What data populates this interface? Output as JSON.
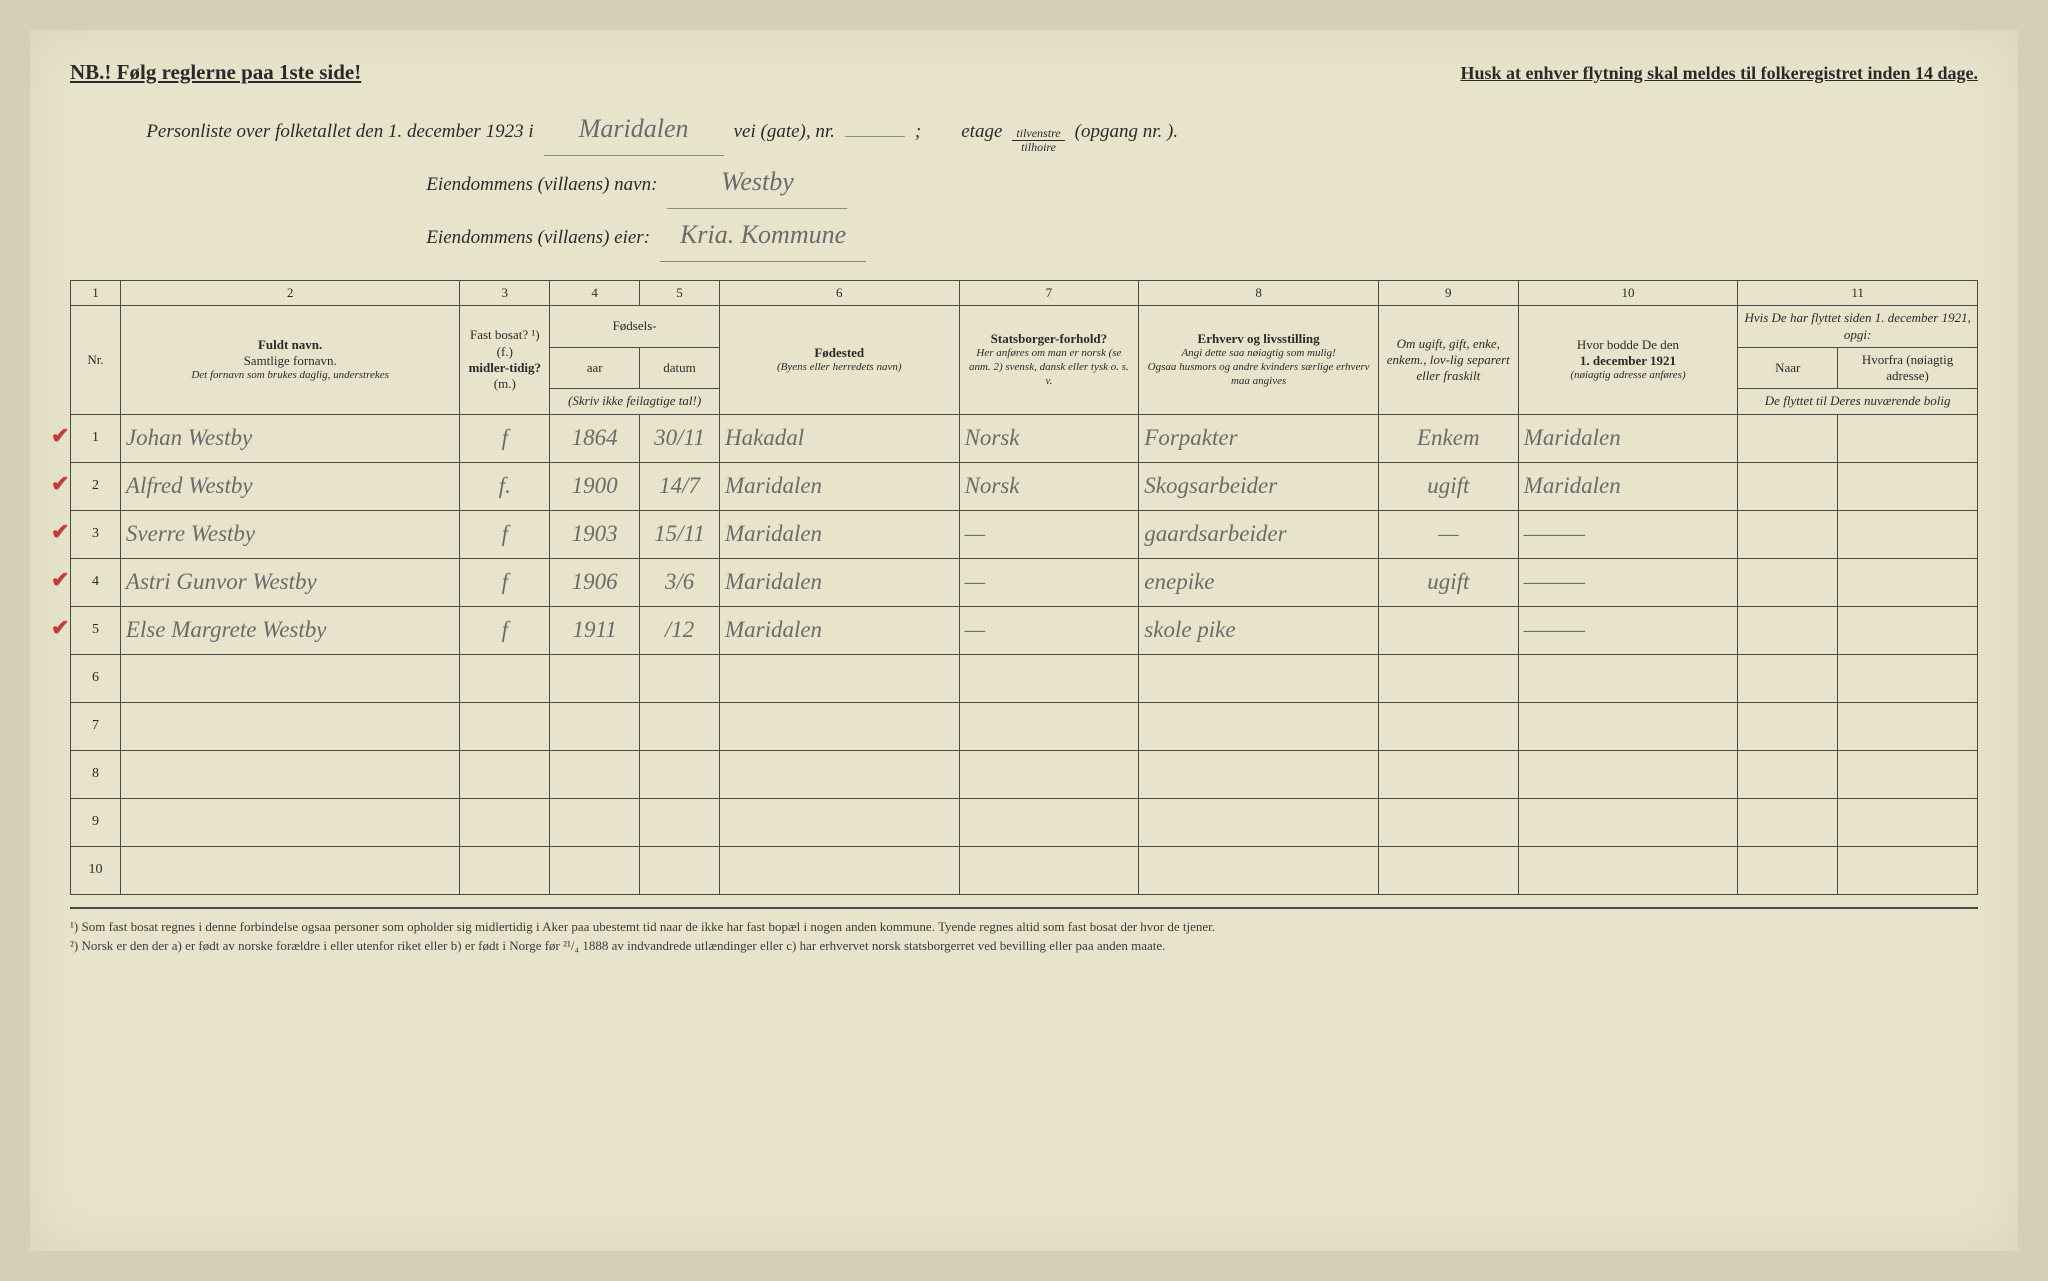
{
  "top": {
    "nb": "NB.! Følg reglerne paa 1ste side!",
    "husk": "Husk at enhver flytning skal meldes til folkeregistret inden 14 dage."
  },
  "header": {
    "line1_a": "Personliste over folketallet den 1. december 1923 i",
    "street": "Maridalen",
    "line1_b": "vei (gate), nr.",
    "line1_c": ";",
    "line1_d": "etage",
    "frac_top": "tilvenstre",
    "frac_bot": "tilhoire",
    "line1_e": "(opgang nr.      ).",
    "line2_a": "Eiendommens (villaens) navn:",
    "villa_name": "Westby",
    "line3_a": "Eiendommens (villaens) eier:",
    "villa_owner": "Kria. Kommune"
  },
  "colnums": [
    "1",
    "2",
    "3",
    "4",
    "5",
    "6",
    "7",
    "8",
    "9",
    "10",
    "11"
  ],
  "headers": {
    "nr": "Nr.",
    "name_main": "Fuldt navn.",
    "name_sub1": "Samtlige fornavn.",
    "name_sub2": "Det fornavn som brukes daglig, understrekes",
    "fast_main": "Fast bosat? ¹)",
    "fast_sub1": "(f.)",
    "fast_sub2": "midler-tidig?",
    "fast_sub3": "(m.)",
    "fodsel": "Fødsels-",
    "aar": "aar",
    "datum": "datum",
    "fodsel_sub": "(Skriv ikke feilagtige tal!)",
    "fodested": "Fødested",
    "fodested_sub": "(Byens eller herredets navn)",
    "stats_main": "Statsborger-forhold?",
    "stats_sub": "Her anføres om man er norsk (se anm. 2) svensk, dansk eller tysk o. s. v.",
    "erhverv_main": "Erhverv og livsstilling",
    "erhverv_sub1": "Angi dette saa nøiagtig som mulig!",
    "erhverv_sub2": "Ogsaa husmors og andre kvinders særlige erhverv maa angives",
    "ugift": "Om ugift, gift, enke, enkem., lov-lig separert eller fraskilt",
    "bodde_main": "Hvor bodde De den",
    "bodde_date": "1. december 1921",
    "bodde_sub": "(nøiagtig adresse anføres)",
    "flyttet_main": "Hvis De har flyttet siden 1. december 1921, opgi:",
    "naar": "Naar",
    "hvorfra": "Hvorfra (nøiagtig adresse)",
    "flyttet_sub": "De flyttet til Deres nuværende bolig"
  },
  "rows": [
    {
      "nr": "1",
      "check": true,
      "name": "Johan Westby",
      "fast": "f",
      "aar": "1864",
      "datum": "30/11",
      "fodested": "Hakadal",
      "stats": "Norsk",
      "erhverv": "Forpakter",
      "ugift": "Enkem",
      "bodde": "Maridalen",
      "naar": "",
      "hvorfra": ""
    },
    {
      "nr": "2",
      "check": true,
      "name": "Alfred Westby",
      "fast": "f.",
      "aar": "1900",
      "datum": "14/7",
      "fodested": "Maridalen",
      "stats": "Norsk",
      "erhverv": "Skogsarbeider",
      "ugift": "ugift",
      "bodde": "Maridalen",
      "naar": "",
      "hvorfra": ""
    },
    {
      "nr": "3",
      "check": true,
      "name": "Sverre Westby",
      "fast": "f",
      "aar": "1903",
      "datum": "15/11",
      "fodested": "Maridalen",
      "stats": "—",
      "erhverv": "gaardsarbeider",
      "ugift": "—",
      "bodde": "———",
      "naar": "",
      "hvorfra": ""
    },
    {
      "nr": "4",
      "check": true,
      "name": "Astri Gunvor Westby",
      "fast": "f",
      "aar": "1906",
      "datum": "3/6",
      "fodested": "Maridalen",
      "stats": "—",
      "erhverv": "enepike",
      "ugift": "ugift",
      "bodde": "———",
      "naar": "",
      "hvorfra": ""
    },
    {
      "nr": "5",
      "check": true,
      "name": "Else Margrete Westby",
      "fast": "f",
      "aar": "1911",
      "datum": "/12",
      "fodested": "Maridalen",
      "stats": "—",
      "erhverv": "skole pike",
      "ugift": "",
      "bodde": "———",
      "naar": "",
      "hvorfra": ""
    }
  ],
  "empty_rows": [
    "6",
    "7",
    "8",
    "9",
    "10"
  ],
  "footnotes": {
    "f1": "¹) Som fast bosat regnes i denne forbindelse ogsaa personer som opholder sig midlertidig i Aker paa ubestemt tid naar de ikke har fast bopæl i nogen anden kommune. Tyende regnes altid som fast bosat der hvor de tjener.",
    "f2": "²) Norsk er den der a) er født av norske forældre i eller utenfor riket eller b) er født i Norge før ²¹/₄ 1888 av indvandrede utlændinger eller c) har erhvervet norsk statsborgerret ved bevilling eller paa anden maate."
  }
}
